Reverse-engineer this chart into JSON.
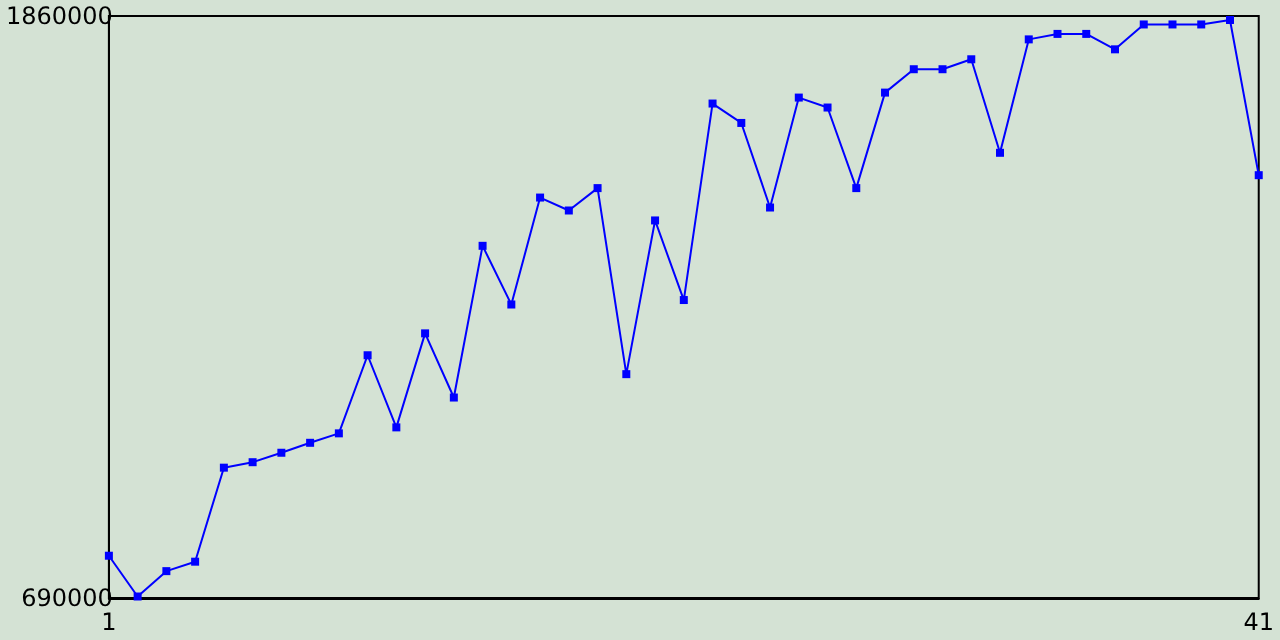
{
  "chart_data": {
    "type": "line",
    "x": [
      1,
      2,
      3,
      4,
      5,
      6,
      7,
      8,
      9,
      10,
      11,
      12,
      13,
      14,
      15,
      16,
      17,
      18,
      19,
      20,
      21,
      22,
      23,
      24,
      25,
      26,
      27,
      28,
      29,
      30,
      31,
      32,
      33,
      34,
      35,
      36,
      37,
      38,
      39,
      40,
      41
    ],
    "series": [
      {
        "color": "#0000ff",
        "values": [
          775000,
          693000,
          744000,
          763000,
          952000,
          963000,
          982000,
          1002000,
          1021000,
          1178000,
          1033000,
          1222000,
          1093000,
          1398000,
          1280000,
          1495000,
          1469000,
          1514000,
          1140000,
          1449000,
          1289000,
          1684000,
          1645000,
          1475000,
          1696000,
          1676000,
          1514000,
          1706000,
          1753000,
          1753000,
          1773000,
          1585000,
          1813000,
          1824000,
          1824000,
          1793000,
          1843000,
          1843000,
          1843000,
          1852000,
          1540000
        ]
      }
    ],
    "xlim": [
      1,
      41
    ],
    "xticks": [
      1,
      41
    ],
    "ylim": [
      690000,
      1860000
    ],
    "yticks": [
      690000,
      1860000
    ],
    "grid": false,
    "marker": "square",
    "line_style": "solid"
  }
}
